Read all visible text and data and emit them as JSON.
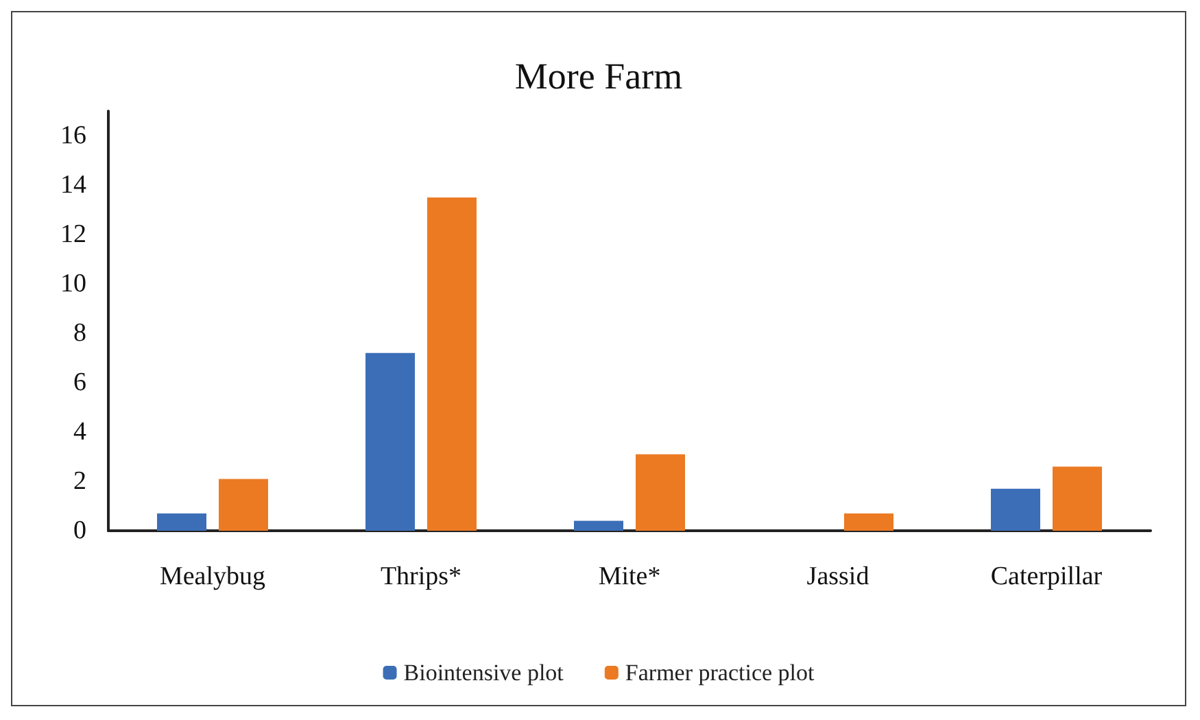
{
  "chart_data": {
    "type": "bar",
    "title": "More Farm",
    "categories": [
      "Mealybug",
      "Thrips*",
      "Mite*",
      "Jassid",
      "Caterpillar"
    ],
    "series": [
      {
        "name": "Biointensive plot",
        "color": "#3c6eb7",
        "values": [
          0.7,
          7.2,
          0.4,
          0,
          1.7
        ]
      },
      {
        "name": "Farmer practice plot",
        "color": "#eb7a23",
        "values": [
          2.1,
          13.5,
          3.1,
          0.7,
          2.6
        ]
      }
    ],
    "ylim": [
      0,
      17
    ],
    "yticks": [
      0,
      2,
      4,
      6,
      8,
      10,
      12,
      14,
      16
    ],
    "grid": false,
    "legend": "bottom"
  }
}
